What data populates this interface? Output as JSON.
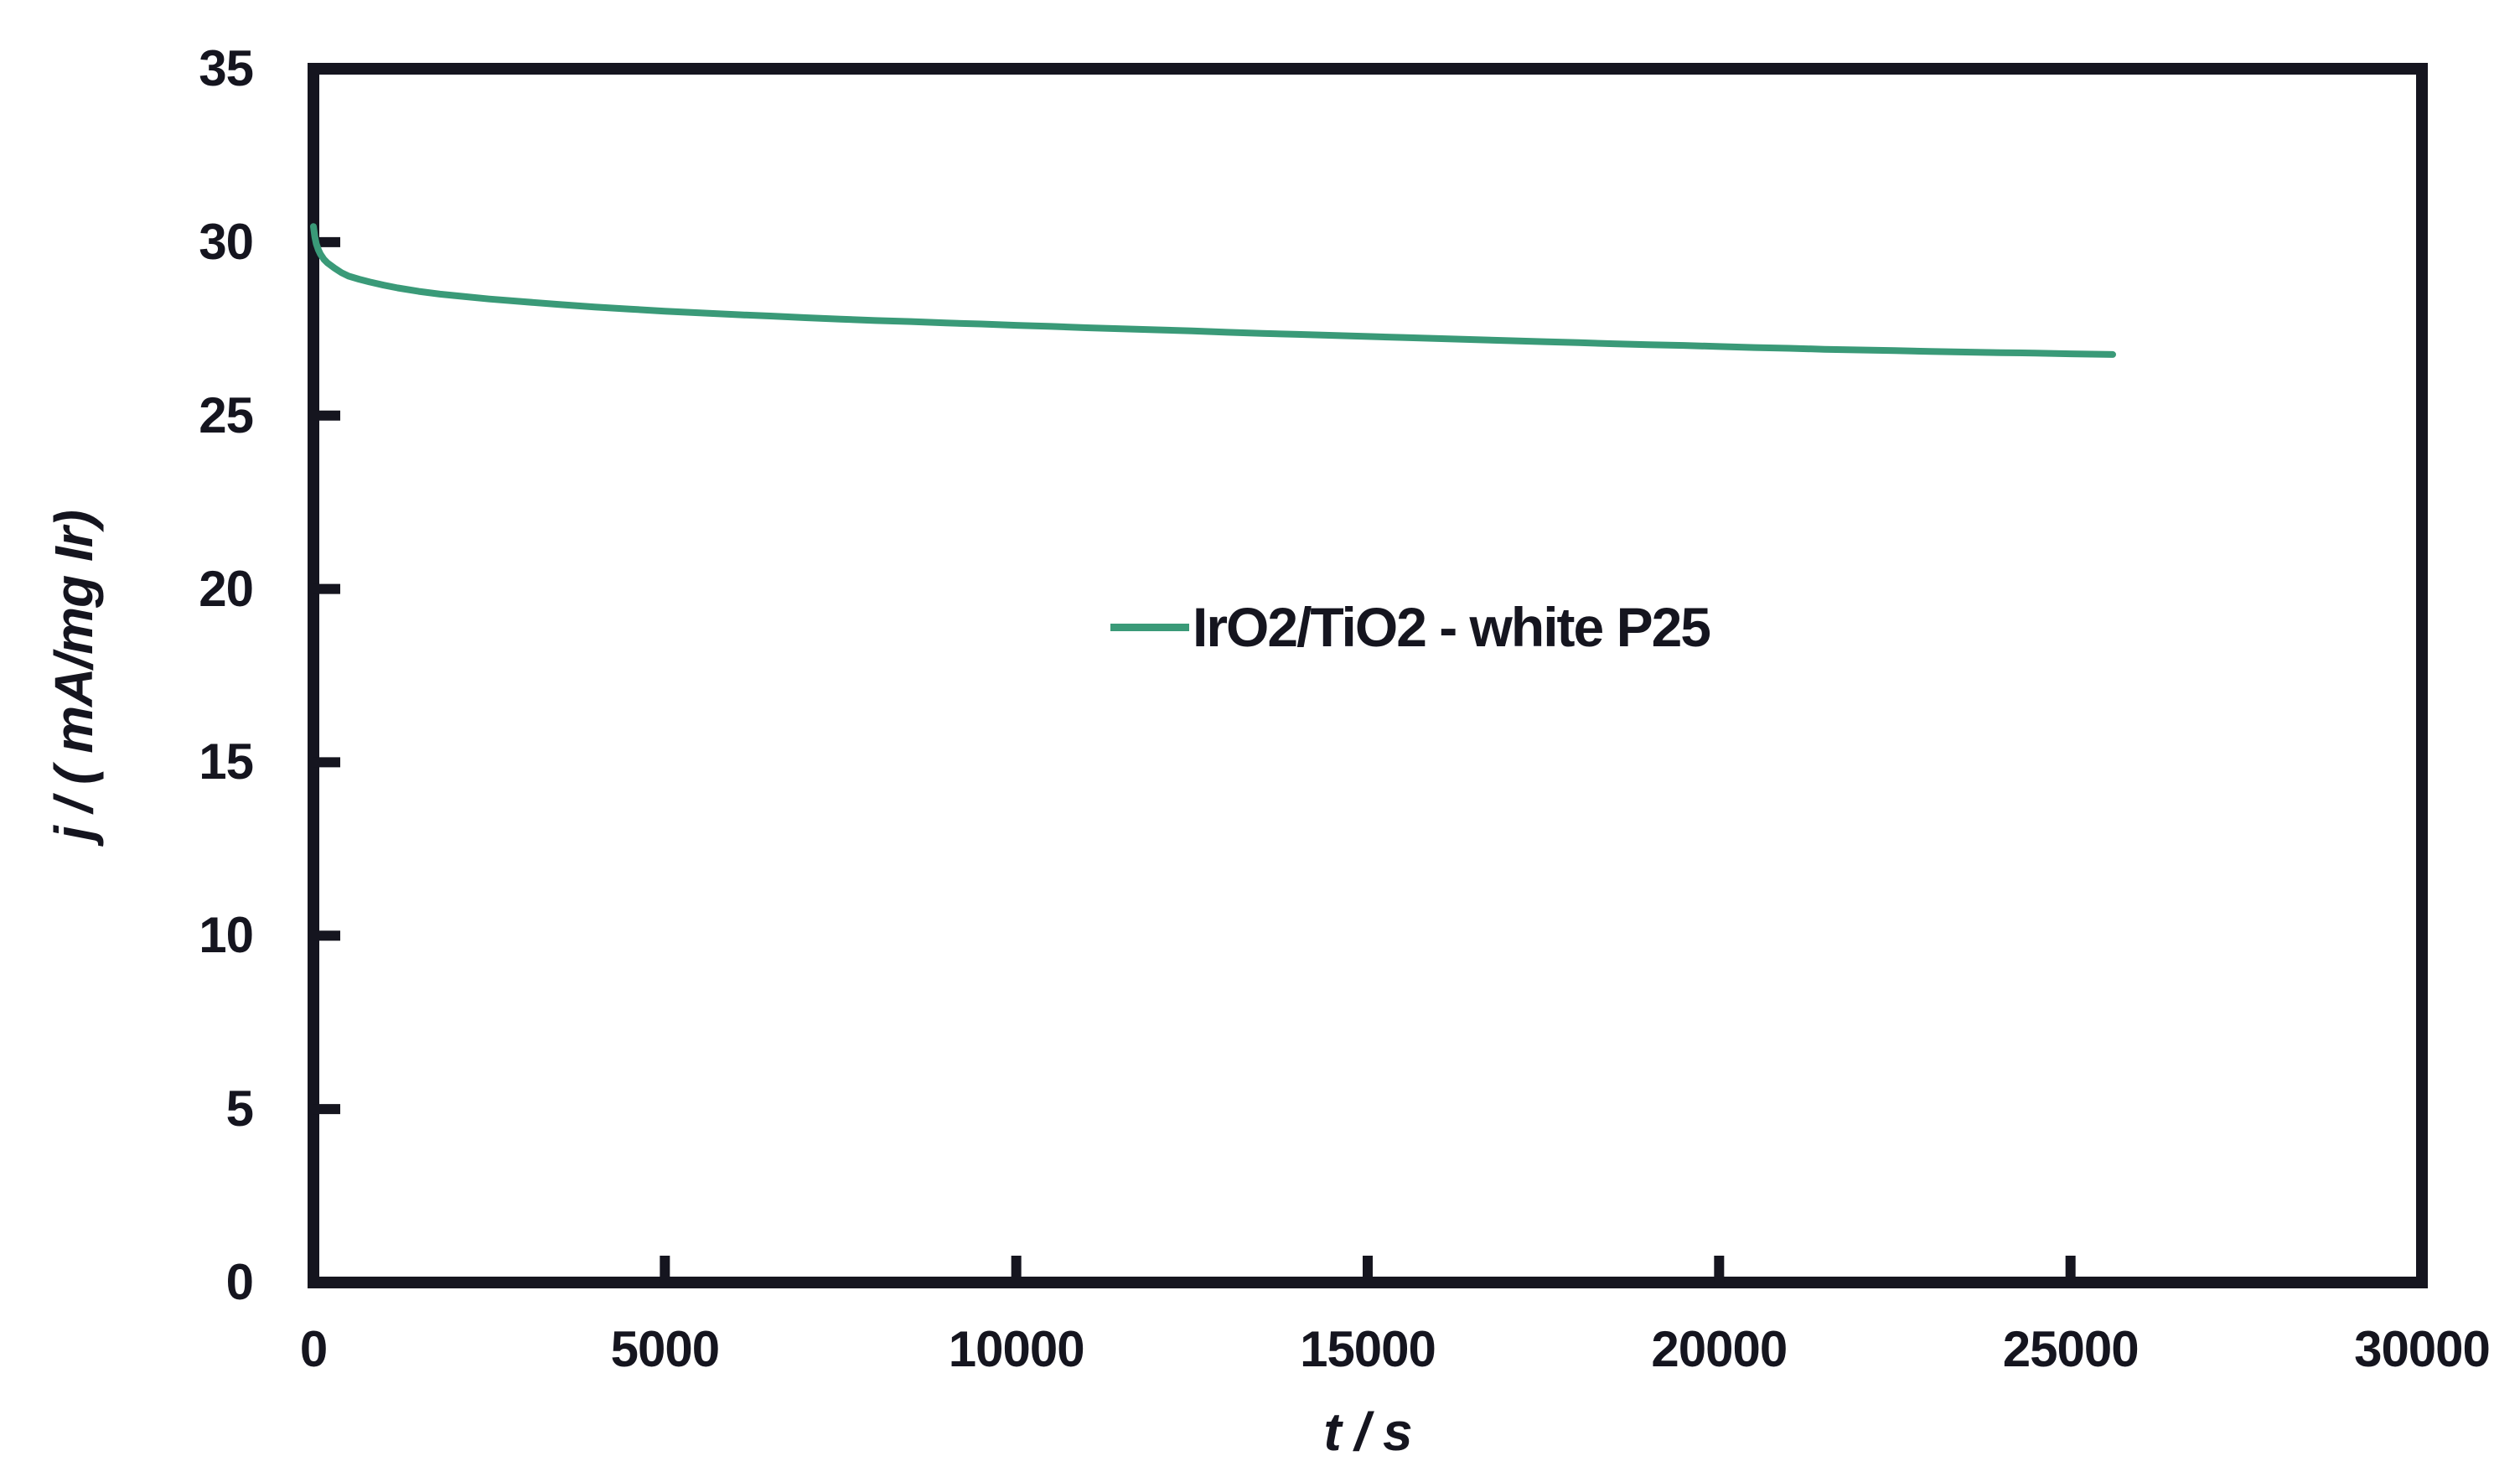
{
  "colors": {
    "axis": "#15151f",
    "line": "#3a9a78",
    "background": "#ffffff"
  },
  "chart_data": {
    "type": "line",
    "title": "",
    "xlabel": "t / s",
    "ylabel": "j / ( mA/mg Ir)",
    "xlim": [
      0,
      30000
    ],
    "ylim": [
      0,
      35
    ],
    "grid": false,
    "legend_position": "inside center-right of plot",
    "x_ticks": [
      0,
      5000,
      10000,
      15000,
      20000,
      25000,
      30000
    ],
    "x_tick_labels": [
      "0",
      "5000",
      "10000",
      "15000",
      "20000",
      "25000",
      "30000"
    ],
    "y_ticks": [
      0,
      5,
      10,
      15,
      20,
      25,
      30,
      35
    ],
    "y_tick_labels": [
      "0",
      "5",
      "10",
      "15",
      "20",
      "25",
      "30",
      "35"
    ],
    "series": [
      {
        "name": "IrO2/TiO2 - white P25",
        "color": "#3a9a78",
        "points": [
          [
            0,
            30.45
          ],
          [
            20,
            30.15
          ],
          [
            40,
            29.95
          ],
          [
            70,
            29.78
          ],
          [
            100,
            29.65
          ],
          [
            150,
            29.5
          ],
          [
            200,
            29.4
          ],
          [
            300,
            29.25
          ],
          [
            400,
            29.12
          ],
          [
            500,
            29.02
          ],
          [
            650,
            28.93
          ],
          [
            800,
            28.85
          ],
          [
            1000,
            28.76
          ],
          [
            1200,
            28.68
          ],
          [
            1500,
            28.58
          ],
          [
            1800,
            28.5
          ],
          [
            2100,
            28.44
          ],
          [
            2500,
            28.36
          ],
          [
            3000,
            28.28
          ],
          [
            3500,
            28.2
          ],
          [
            4000,
            28.13
          ],
          [
            4500,
            28.07
          ],
          [
            5000,
            28.01
          ],
          [
            5500,
            27.96
          ],
          [
            6000,
            27.91
          ],
          [
            6500,
            27.87
          ],
          [
            7000,
            27.82
          ],
          [
            7500,
            27.78
          ],
          [
            8000,
            27.74
          ],
          [
            8500,
            27.71
          ],
          [
            9000,
            27.67
          ],
          [
            9500,
            27.64
          ],
          [
            10000,
            27.6
          ],
          [
            10500,
            27.57
          ],
          [
            11000,
            27.53
          ],
          [
            11500,
            27.5
          ],
          [
            12000,
            27.47
          ],
          [
            12500,
            27.44
          ],
          [
            13000,
            27.4
          ],
          [
            13500,
            27.37
          ],
          [
            14000,
            27.34
          ],
          [
            14500,
            27.31
          ],
          [
            15000,
            27.28
          ],
          [
            15500,
            27.25
          ],
          [
            16000,
            27.22
          ],
          [
            16500,
            27.19
          ],
          [
            17000,
            27.16
          ],
          [
            17500,
            27.13
          ],
          [
            18000,
            27.1
          ],
          [
            18500,
            27.07
          ],
          [
            19000,
            27.04
          ],
          [
            19500,
            27.02
          ],
          [
            20000,
            26.99
          ],
          [
            20500,
            26.96
          ],
          [
            21000,
            26.94
          ],
          [
            21500,
            26.91
          ],
          [
            22000,
            26.89
          ],
          [
            22500,
            26.87
          ],
          [
            23000,
            26.85
          ],
          [
            23500,
            26.83
          ],
          [
            24000,
            26.81
          ],
          [
            24500,
            26.8
          ],
          [
            25000,
            26.78
          ],
          [
            25300,
            26.77
          ],
          [
            25600,
            26.76
          ]
        ]
      }
    ]
  }
}
